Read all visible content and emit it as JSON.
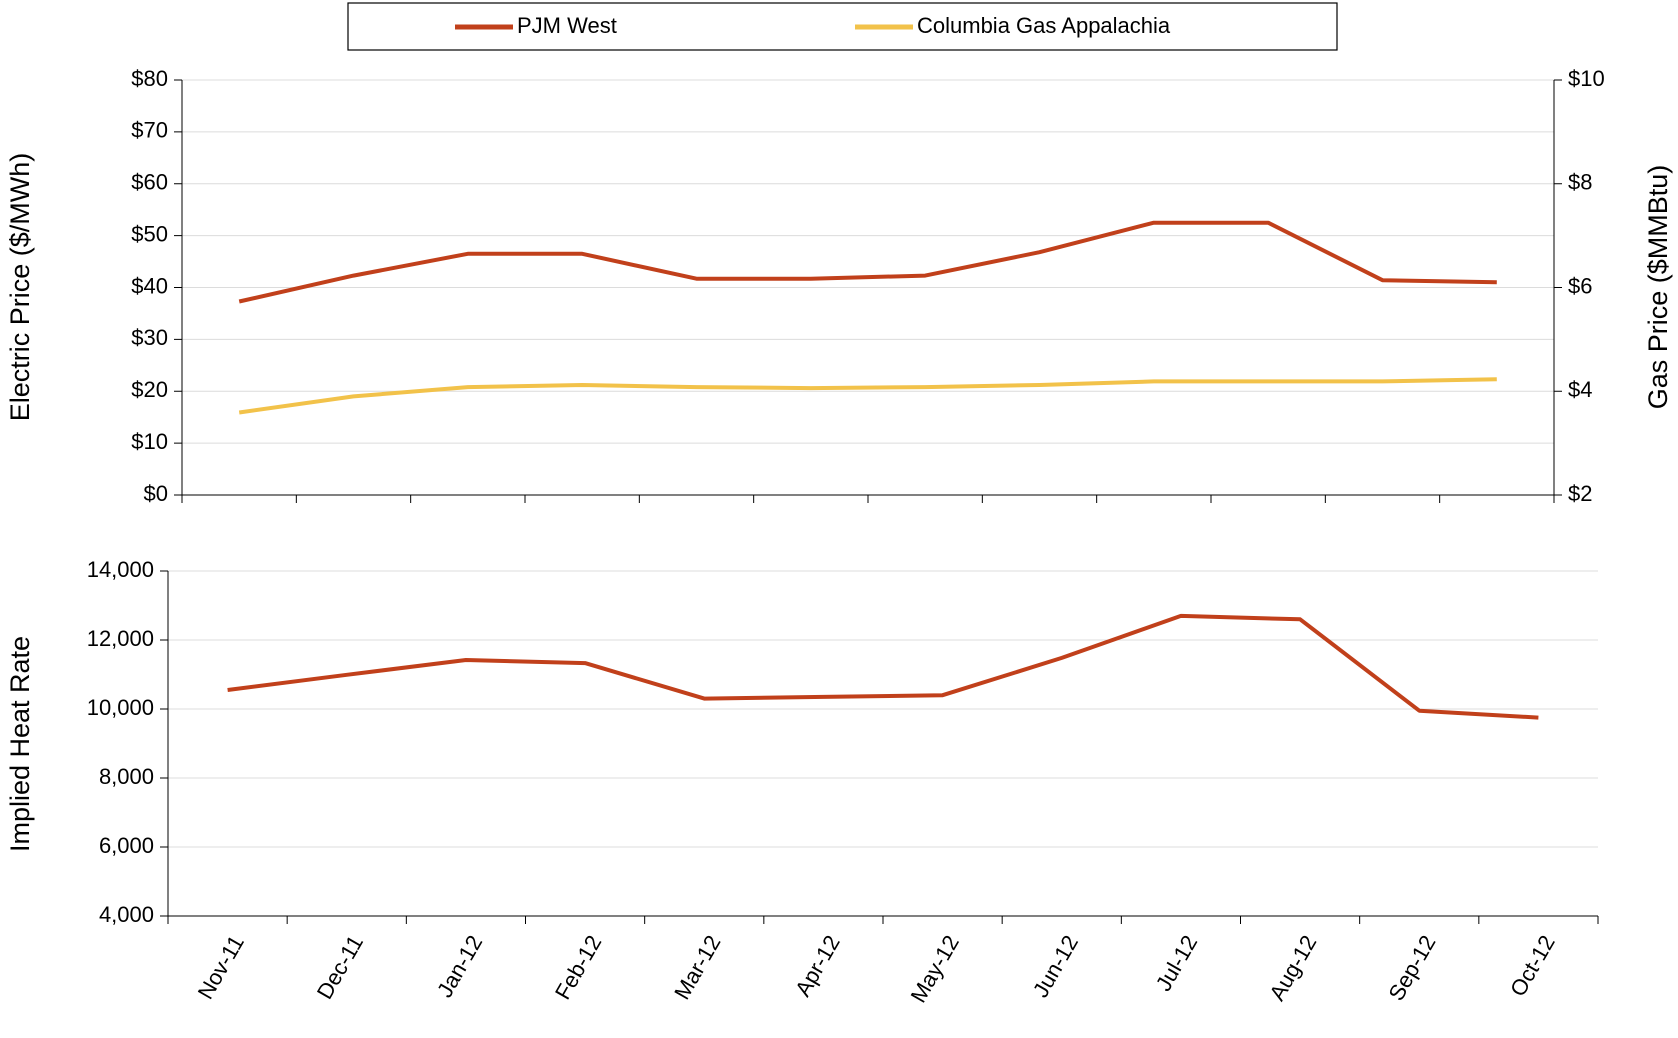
{
  "chart_data": [
    {
      "type": "line",
      "y_label": "Electric Price ($/MWh)",
      "y2_label": "Gas Price ($MMBtu)",
      "series": [
        {
          "name": "PJM West",
          "color": "#c1401b",
          "values": [
            37.3,
            42.3,
            46.5,
            46.5,
            41.7,
            41.7,
            42.3,
            46.8,
            52.5,
            52.5,
            41.4,
            41.0
          ]
        },
        {
          "name": "Columbia Gas Appalachia",
          "color": "#f2c24a",
          "axis": "y2",
          "values": [
            3.59,
            3.9,
            4.08,
            4.12,
            4.08,
            4.06,
            4.08,
            4.12,
            4.19,
            4.19,
            4.19,
            4.23
          ]
        }
      ],
      "ylim": [
        0,
        80
      ],
      "yticks": [
        {
          "value": 0,
          "label": "$0"
        },
        {
          "value": 10,
          "label": "$10"
        },
        {
          "value": 20,
          "label": "$20"
        },
        {
          "value": 30,
          "label": "$30"
        },
        {
          "value": 40,
          "label": "$40"
        },
        {
          "value": 50,
          "label": "$50"
        },
        {
          "value": 60,
          "label": "$60"
        },
        {
          "value": 70,
          "label": "$70"
        },
        {
          "value": 80,
          "label": "$80"
        }
      ],
      "y2lim": [
        2,
        10
      ],
      "y2ticks": [
        {
          "value": 2,
          "label": "$2"
        },
        {
          "value": 4,
          "label": "$4"
        },
        {
          "value": 6,
          "label": "$6"
        },
        {
          "value": 8,
          "label": "$8"
        },
        {
          "value": 10,
          "label": "$10"
        }
      ],
      "grid": true
    },
    {
      "type": "line",
      "y_label": "Implied Heat Rate",
      "categories": [
        "Nov-11",
        "Dec-11",
        "Jan-12",
        "Feb-12",
        "Mar-12",
        "Apr-12",
        "May-12",
        "Jun-12",
        "Jul-12",
        "Aug-12",
        "Sep-12",
        "Oct-12"
      ],
      "values": [
        10550,
        10990,
        11420,
        11330,
        10300,
        10350,
        10400,
        11480,
        12700,
        12600,
        9950,
        9750
      ],
      "color": "#c1401b",
      "ylim": [
        4000,
        14000
      ],
      "yticks": [
        {
          "value": 4000,
          "label": "4,000"
        },
        {
          "value": 6000,
          "label": "6,000"
        },
        {
          "value": 8000,
          "label": "8,000"
        },
        {
          "value": 10000,
          "label": "10,000"
        },
        {
          "value": 12000,
          "label": "12,000"
        },
        {
          "value": 14000,
          "label": "14,000"
        }
      ],
      "grid": true
    }
  ]
}
